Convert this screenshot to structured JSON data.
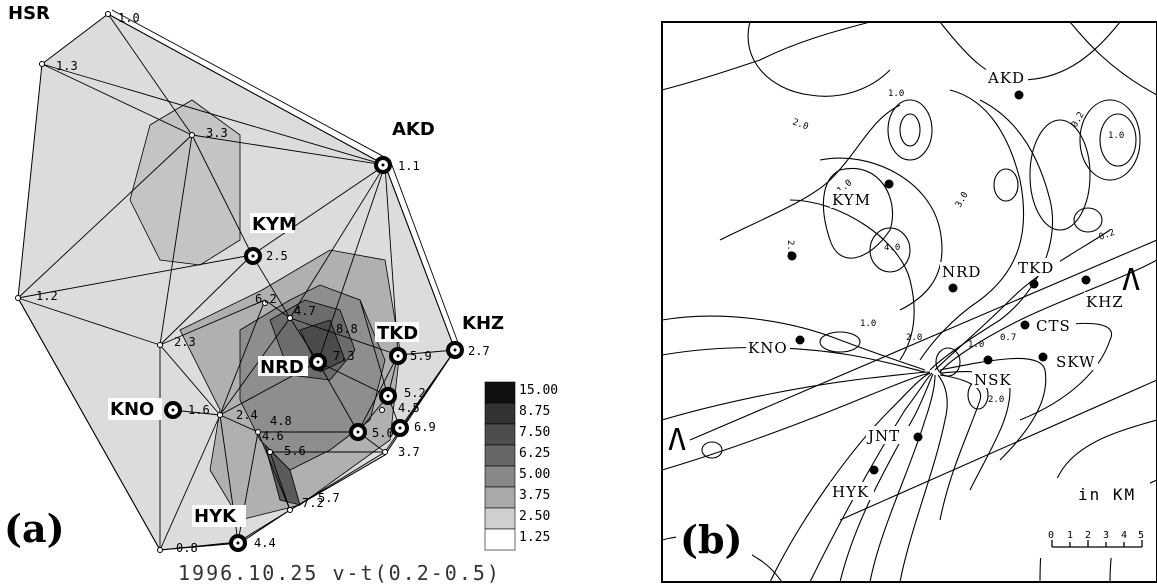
{
  "panel_a": {
    "label": "(a)",
    "caption": "1996.10.25  v-t(0.2-0.5)",
    "stations": [
      {
        "code": "HSR",
        "value": "1.0"
      },
      {
        "code": "AKD",
        "value": "1.1"
      },
      {
        "code": "KYM",
        "value": "2.5"
      },
      {
        "code": "TKD",
        "value": "5.9"
      },
      {
        "code": "KHZ",
        "value": "2.7"
      },
      {
        "code": "NRD",
        "value": "7.3"
      },
      {
        "code": "KNO",
        "value": "1.6"
      },
      {
        "code": "HYK",
        "value": "4.4"
      }
    ],
    "other_values": [
      "1.3",
      "3.3",
      "1.2",
      "2.3",
      "6.2",
      "4.7",
      "8.8",
      "5.2",
      "4.5",
      "5.0",
      "6.9",
      "3.7",
      "2.4",
      "4.8",
      "4.6",
      "5.6",
      "7.2",
      "5.7",
      "0.8"
    ],
    "legend": {
      "labels": [
        "15.00",
        "8.75",
        "7.50",
        "6.25",
        "5.00",
        "3.75",
        "2.50",
        "1.25"
      ],
      "colors": [
        "#111111",
        "#333333",
        "#4d4d4d",
        "#676767",
        "#888888",
        "#a9a9a9",
        "#cfcfcf",
        "#ffffff"
      ]
    }
  },
  "panel_b": {
    "label": "(b)",
    "stations": [
      "AKD",
      "KYM",
      "NRD",
      "TKD",
      "KHZ",
      "CTS",
      "KNO",
      "NSK",
      "SKW",
      "JNT",
      "HYK"
    ],
    "section_label": "Λ",
    "scale_title": "in KM",
    "scale_ticks": [
      "0",
      "1",
      "2",
      "3",
      "4",
      "5"
    ],
    "contour_values": [
      "2.0",
      "1.0",
      "0.2",
      "1.0",
      "0.2",
      "1.0",
      "2.0",
      "4.0",
      "3.0",
      "1.0",
      "2.0",
      "1.0",
      "2.0",
      "0.7"
    ]
  }
}
